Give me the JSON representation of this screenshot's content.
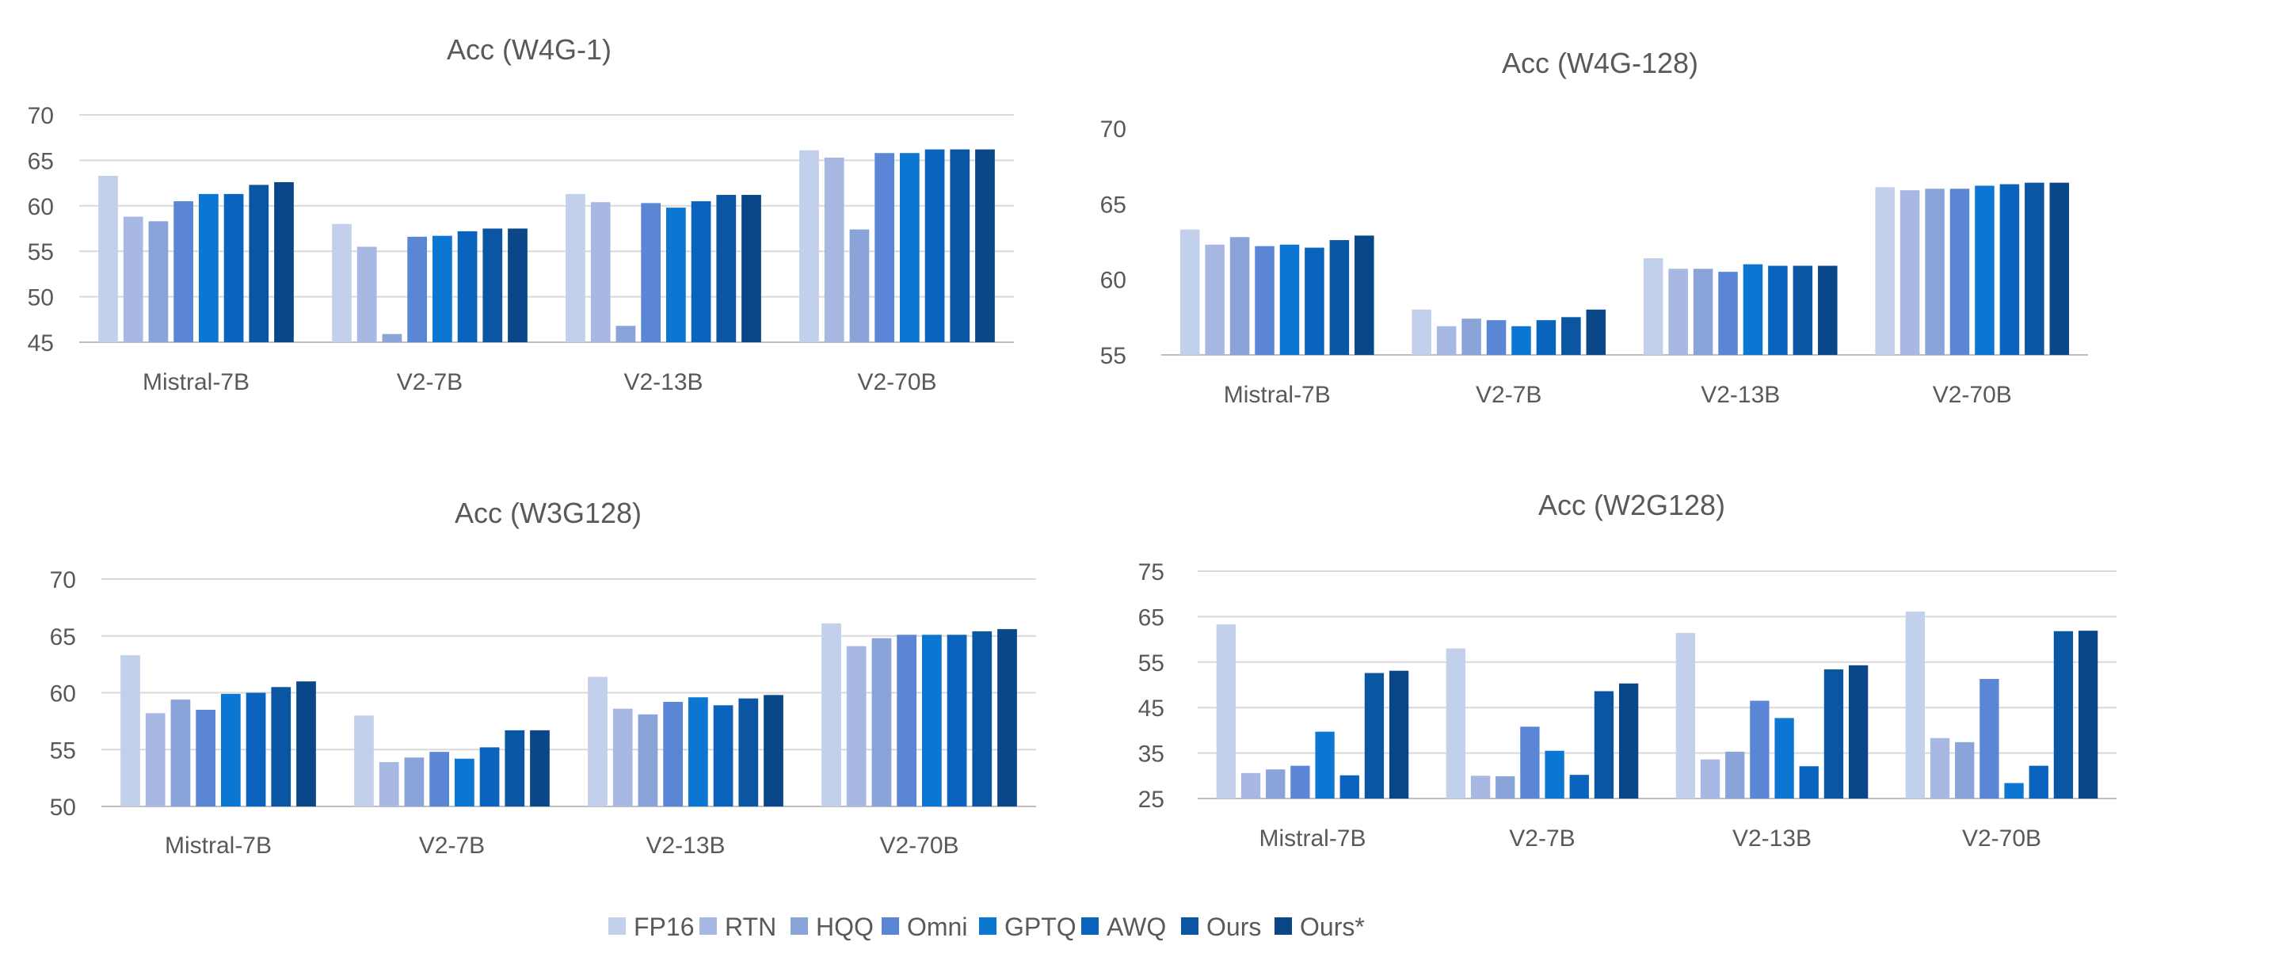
{
  "chart_data": [
    {
      "type": "bar",
      "title": "Acc (W4G-1)",
      "categories": [
        "Mistral-7B",
        "V2-7B",
        "V2-13B",
        "V2-70B"
      ],
      "ylim": [
        45,
        70
      ],
      "yticks": [
        45,
        50,
        55,
        60,
        65,
        70
      ],
      "grid": true,
      "series": [
        {
          "name": "FP16",
          "values": [
            63.3,
            58.0,
            61.3,
            66.1
          ]
        },
        {
          "name": "RTN",
          "values": [
            58.8,
            55.5,
            60.4,
            65.3
          ]
        },
        {
          "name": "HQQ",
          "values": [
            58.3,
            45.9,
            46.8,
            57.4
          ]
        },
        {
          "name": "Omni",
          "values": [
            60.5,
            56.6,
            60.3,
            65.8
          ]
        },
        {
          "name": "GPTQ",
          "values": [
            61.3,
            56.7,
            59.8,
            65.8
          ]
        },
        {
          "name": "AWQ",
          "values": [
            61.3,
            57.2,
            60.5,
            66.2
          ]
        },
        {
          "name": "Ours",
          "values": [
            62.3,
            57.5,
            61.2,
            66.2
          ]
        },
        {
          "name": "Ours*",
          "values": [
            62.6,
            57.5,
            61.2,
            66.2
          ]
        }
      ]
    },
    {
      "type": "bar",
      "title": "Acc (W4G-128)",
      "categories": [
        "Mistral-7B",
        "V2-7B",
        "V2-13B",
        "V2-70B"
      ],
      "ylim": [
        55,
        70
      ],
      "yticks": [
        55,
        60,
        65,
        70
      ],
      "grid": false,
      "series": [
        {
          "name": "FP16",
          "values": [
            63.3,
            58.0,
            61.4,
            66.1
          ]
        },
        {
          "name": "RTN",
          "values": [
            62.3,
            56.9,
            60.7,
            65.9
          ]
        },
        {
          "name": "HQQ",
          "values": [
            62.8,
            57.4,
            60.7,
            66.0
          ]
        },
        {
          "name": "Omni",
          "values": [
            62.2,
            57.3,
            60.5,
            66.0
          ]
        },
        {
          "name": "GPTQ",
          "values": [
            62.3,
            56.9,
            61.0,
            66.2
          ]
        },
        {
          "name": "AWQ",
          "values": [
            62.1,
            57.3,
            60.9,
            66.3
          ]
        },
        {
          "name": "Ours",
          "values": [
            62.6,
            57.5,
            60.9,
            66.4
          ]
        },
        {
          "name": "Ours*",
          "values": [
            62.9,
            58.0,
            60.9,
            66.4
          ]
        }
      ]
    },
    {
      "type": "bar",
      "title": "Acc (W3G128)",
      "categories": [
        "Mistral-7B",
        "V2-7B",
        "V2-13B",
        "V2-70B"
      ],
      "ylim": [
        50,
        70
      ],
      "yticks": [
        50,
        55,
        60,
        65,
        70
      ],
      "grid": true,
      "series": [
        {
          "name": "FP16",
          "values": [
            63.3,
            58.0,
            61.4,
            66.1
          ]
        },
        {
          "name": "RTN",
          "values": [
            58.2,
            53.9,
            58.6,
            64.1
          ]
        },
        {
          "name": "HQQ",
          "values": [
            59.4,
            54.3,
            58.1,
            64.8
          ]
        },
        {
          "name": "Omni",
          "values": [
            58.5,
            54.8,
            59.2,
            65.1
          ]
        },
        {
          "name": "GPTQ",
          "values": [
            59.9,
            54.2,
            59.6,
            65.1
          ]
        },
        {
          "name": "AWQ",
          "values": [
            60.0,
            55.2,
            58.9,
            65.1
          ]
        },
        {
          "name": "Ours",
          "values": [
            60.5,
            56.7,
            59.5,
            65.4
          ]
        },
        {
          "name": "Ours*",
          "values": [
            61.0,
            56.7,
            59.8,
            65.6
          ]
        }
      ]
    },
    {
      "type": "bar",
      "title": "Acc (W2G128)",
      "categories": [
        "Mistral-7B",
        "V2-7B",
        "V2-13B",
        "V2-70B"
      ],
      "ylim": [
        25,
        75
      ],
      "yticks": [
        25,
        35,
        45,
        55,
        65,
        75
      ],
      "grid": true,
      "series": [
        {
          "name": "FP16",
          "values": [
            63.3,
            58.0,
            61.4,
            66.1
          ]
        },
        {
          "name": "RTN",
          "values": [
            30.6,
            30.0,
            33.6,
            38.3
          ]
        },
        {
          "name": "HQQ",
          "values": [
            31.4,
            29.9,
            35.3,
            37.4
          ]
        },
        {
          "name": "Omni",
          "values": [
            32.2,
            40.8,
            46.5,
            51.3
          ]
        },
        {
          "name": "GPTQ",
          "values": [
            39.7,
            35.5,
            42.7,
            28.4
          ]
        },
        {
          "name": "AWQ",
          "values": [
            30.1,
            30.2,
            32.1,
            32.2
          ]
        },
        {
          "name": "Ours",
          "values": [
            52.6,
            48.6,
            53.4,
            61.8
          ]
        },
        {
          "name": "Ours*",
          "values": [
            53.1,
            50.3,
            54.3,
            61.9
          ]
        }
      ]
    }
  ],
  "legend": {
    "items": [
      {
        "name": "FP16",
        "color": "#c3d0ec"
      },
      {
        "name": "RTN",
        "color": "#a7b8e2"
      },
      {
        "name": "HQQ",
        "color": "#8aa4da"
      },
      {
        "name": "Omni",
        "color": "#5b86d6"
      },
      {
        "name": "GPTQ",
        "color": "#0c77d2"
      },
      {
        "name": "AWQ",
        "color": "#0a64bd"
      },
      {
        "name": "Ours",
        "color": "#0a56a3"
      },
      {
        "name": "Ours*",
        "color": "#0a4789"
      }
    ],
    "placement": "bottom"
  }
}
